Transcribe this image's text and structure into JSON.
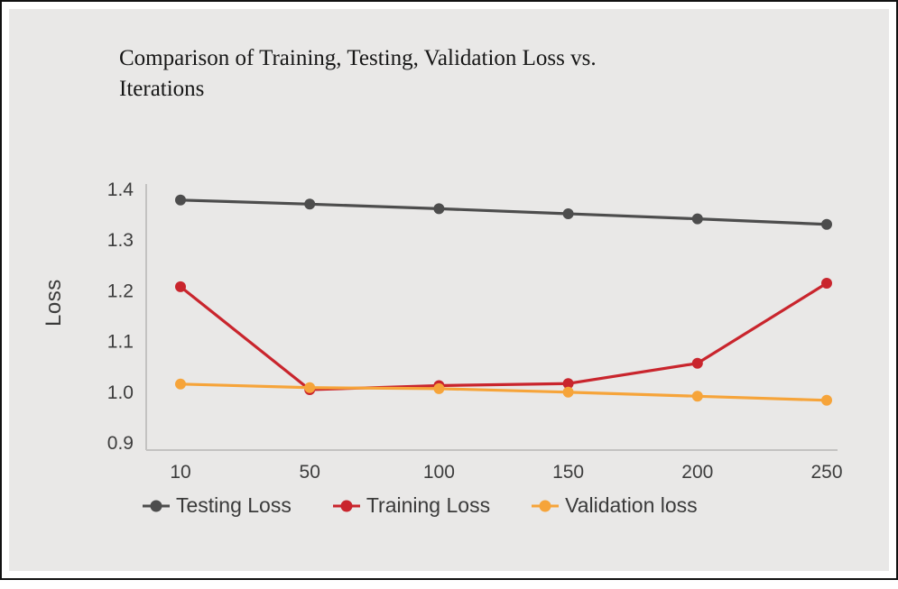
{
  "frame": {
    "panel_background": "#e9e8e7",
    "border_color": "#111111",
    "axis_color": "#c3c2c1"
  },
  "chart_data": {
    "type": "line",
    "title": "Comparison of Training, Testing, Validation Loss vs. Iterations",
    "title_lines": [
      "Comparison of Training, Testing, Validation Loss vs.",
      "Iterations"
    ],
    "xlabel": "",
    "ylabel": "Loss",
    "categories": [
      "10",
      "50",
      "100",
      "150",
      "200",
      "250"
    ],
    "y_ticks": [
      "0.9",
      "1.0",
      "1.1",
      "1.2",
      "1.3",
      "1.4"
    ],
    "ylim": [
      0.9,
      1.4
    ],
    "grid": false,
    "legend_position": "bottom",
    "series": [
      {
        "name": "Testing Loss",
        "color": "#4d4d4d",
        "values": [
          1.379,
          1.371,
          1.362,
          1.352,
          1.342,
          1.331
        ]
      },
      {
        "name": "Training Loss",
        "color": "#c9252d",
        "values": [
          1.208,
          1.005,
          1.013,
          1.017,
          1.057,
          1.215
        ]
      },
      {
        "name": "Validation loss",
        "color": "#f6a43a",
        "values": [
          1.016,
          1.009,
          1.007,
          1.0,
          0.992,
          0.984
        ]
      }
    ]
  }
}
